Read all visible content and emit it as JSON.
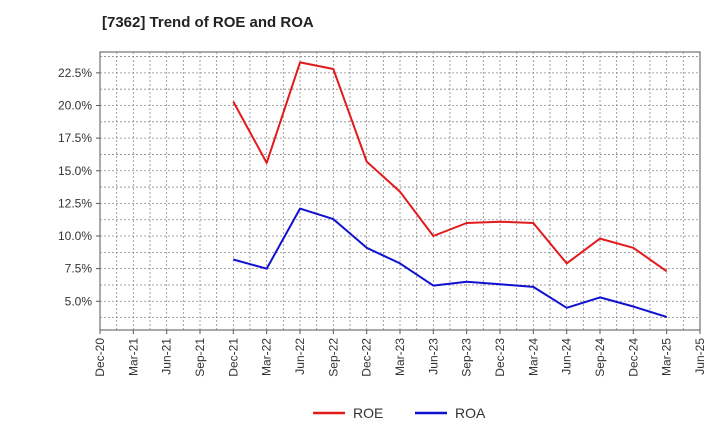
{
  "chart_data": {
    "type": "line",
    "title": "[7362]  Trend of ROE and ROA",
    "xlabel": "",
    "ylabel": "",
    "ylim": [
      2.8,
      24.1
    ],
    "yticks": [
      5.0,
      7.5,
      10.0,
      12.5,
      15.0,
      17.5,
      20.0,
      22.5
    ],
    "ytick_labels": [
      "5.0%",
      "7.5%",
      "10.0%",
      "12.5%",
      "15.0%",
      "17.5%",
      "20.0%",
      "22.5%"
    ],
    "categories": [
      "Dec-20",
      "Mar-21",
      "Jun-21",
      "Sep-21",
      "Dec-21",
      "Mar-22",
      "Jun-22",
      "Sep-22",
      "Dec-22",
      "Mar-23",
      "Jun-23",
      "Sep-23",
      "Dec-23",
      "Mar-24",
      "Jun-24",
      "Sep-24",
      "Dec-24",
      "Mar-25",
      "Jun-25"
    ],
    "grid": true,
    "legend": "bottom-center",
    "series": [
      {
        "name": "ROE",
        "color": "#e31a1c",
        "values": [
          null,
          null,
          null,
          null,
          20.3,
          15.6,
          23.3,
          22.8,
          15.7,
          13.4,
          10.0,
          11.0,
          11.1,
          11.0,
          7.9,
          9.8,
          9.1,
          7.3,
          null
        ]
      },
      {
        "name": "ROA",
        "color": "#1010d0",
        "values": [
          null,
          null,
          null,
          null,
          8.2,
          7.5,
          12.1,
          11.3,
          9.1,
          7.9,
          6.2,
          6.5,
          6.3,
          6.1,
          4.5,
          5.3,
          4.6,
          3.8,
          null
        ]
      }
    ]
  }
}
